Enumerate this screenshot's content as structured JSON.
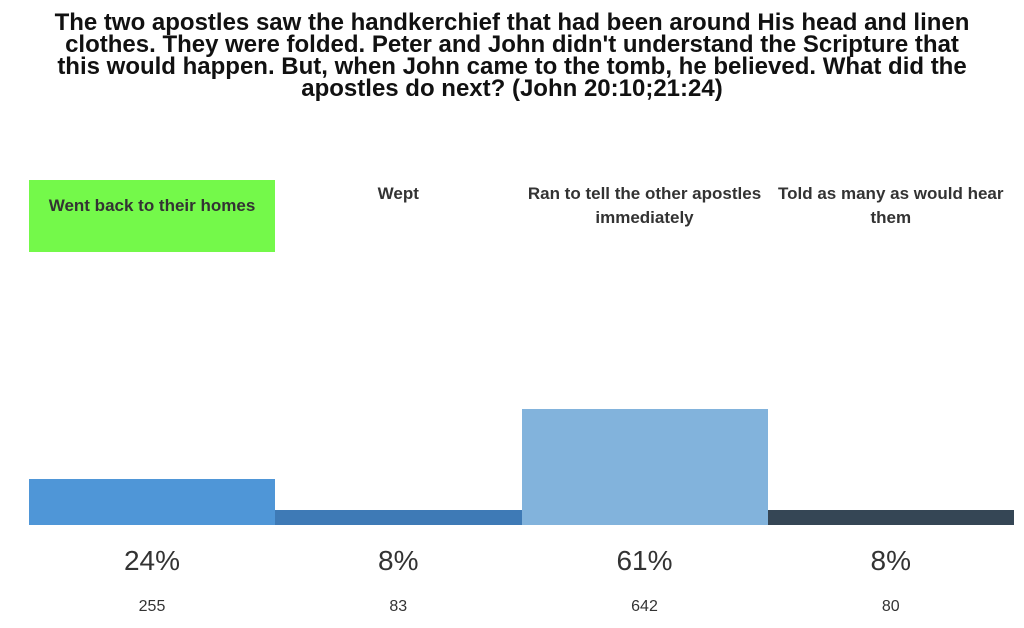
{
  "chart_data": {
    "type": "bar",
    "title": "The two apostles saw the handkerchief that had been around His head and linen clothes. They were folded. Peter and John didn't understand the Scripture that this would happen. But, when John came to the tomb, he believed. What did the apostles do next? (John 20:10;21:24)",
    "categories": [
      "Went back to their homes",
      "Wept",
      "Ran to tell the other apostles immediately",
      "Told as many as would hear them"
    ],
    "values": [
      24,
      8,
      61,
      8
    ],
    "value_labels": [
      "24%",
      "8%",
      "61%",
      "8%"
    ],
    "counts": [
      255,
      83,
      642,
      80
    ],
    "colors": [
      "#4f96d7",
      "#3e7ab6",
      "#82b3dc",
      "#354655"
    ],
    "highlight": 0,
    "highlight_color": "#74f94a"
  }
}
